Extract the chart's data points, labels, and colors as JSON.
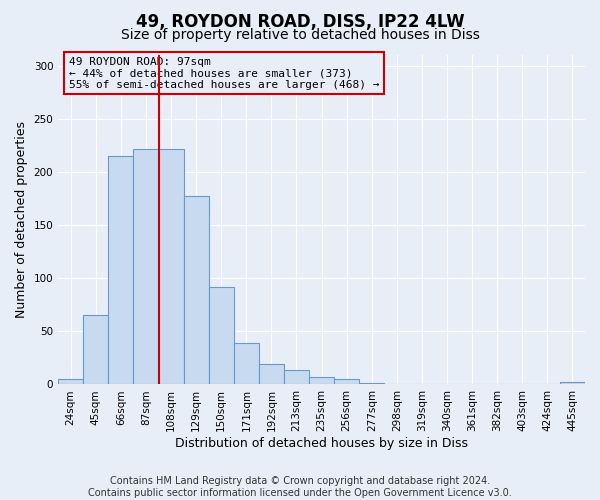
{
  "title": "49, ROYDON ROAD, DISS, IP22 4LW",
  "subtitle": "Size of property relative to detached houses in Diss",
  "xlabel": "Distribution of detached houses by size in Diss",
  "ylabel": "Number of detached properties",
  "bar_labels": [
    "24sqm",
    "45sqm",
    "66sqm",
    "87sqm",
    "108sqm",
    "129sqm",
    "150sqm",
    "171sqm",
    "192sqm",
    "213sqm",
    "235sqm",
    "256sqm",
    "277sqm",
    "298sqm",
    "319sqm",
    "340sqm",
    "361sqm",
    "382sqm",
    "403sqm",
    "424sqm",
    "445sqm"
  ],
  "bar_values": [
    5,
    65,
    215,
    222,
    222,
    177,
    92,
    39,
    19,
    14,
    7,
    5,
    1,
    0,
    0,
    0,
    0,
    0,
    0,
    0,
    2
  ],
  "bar_color": "#c8daf0",
  "bar_edgecolor": "#6699cc",
  "vline_color": "#cc0000",
  "annotation_title": "49 ROYDON ROAD: 97sqm",
  "annotation_line2": "← 44% of detached houses are smaller (373)",
  "annotation_line3": "55% of semi-detached houses are larger (468) →",
  "annotation_box_edgecolor": "#cc0000",
  "ylim": [
    0,
    310
  ],
  "yticks": [
    0,
    50,
    100,
    150,
    200,
    250,
    300
  ],
  "footer_line1": "Contains HM Land Registry data © Crown copyright and database right 2024.",
  "footer_line2": "Contains public sector information licensed under the Open Government Licence v3.0.",
  "background_color": "#e8eef8",
  "plot_background": "#e8eef8",
  "title_fontsize": 12,
  "subtitle_fontsize": 10,
  "axis_label_fontsize": 9,
  "tick_fontsize": 7.5,
  "footer_fontsize": 7
}
